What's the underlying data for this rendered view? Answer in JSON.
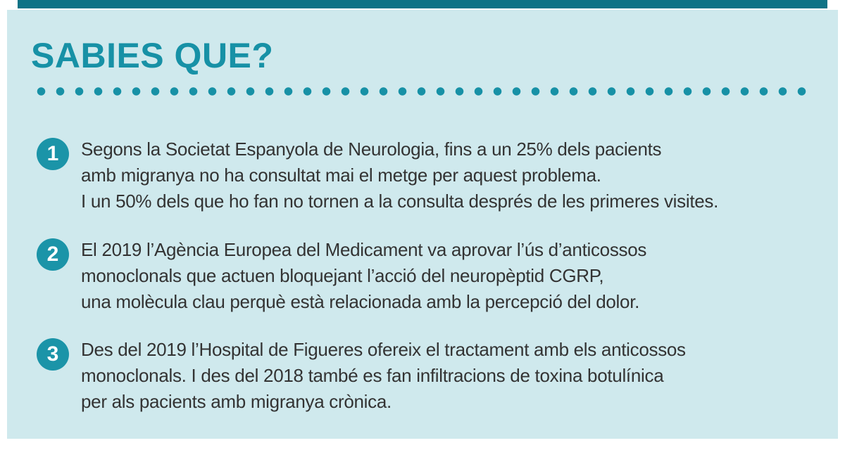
{
  "page": {
    "title": "SABIES QUE?",
    "colors": {
      "accent_teal": "#1791a6",
      "top_bar_teal": "#0e7386",
      "card_background": "#cfe9ed",
      "badge_teal": "#1b94a8",
      "body_text": "#333333"
    }
  },
  "facts": [
    {
      "number": "1",
      "lines": [
        "Segons la Societat Espanyola de Neurologia, fins a un 25% dels pacients",
        "amb migranya no ha consultat mai el metge per aquest problema.",
        "I un 50% dels que ho fan no tornen a la consulta després de les primeres visites."
      ]
    },
    {
      "number": "2",
      "lines": [
        "El 2019 l’Agència Europea del Medicament va aprovar l’ús d’anticossos",
        "monoclonals que actuen bloquejant l’acció del neuropèptid CGRP,",
        "una molècula clau perquè està relacionada amb la percepció del dolor."
      ]
    },
    {
      "number": "3",
      "lines": [
        "Des del 2019 l’Hospital de Figueres ofereix el tractament amb els anticossos",
        "monoclonals. I des del 2018 també es fan infiltracions de toxina botulínica",
        "per als pacients amb migranya crònica."
      ]
    }
  ]
}
